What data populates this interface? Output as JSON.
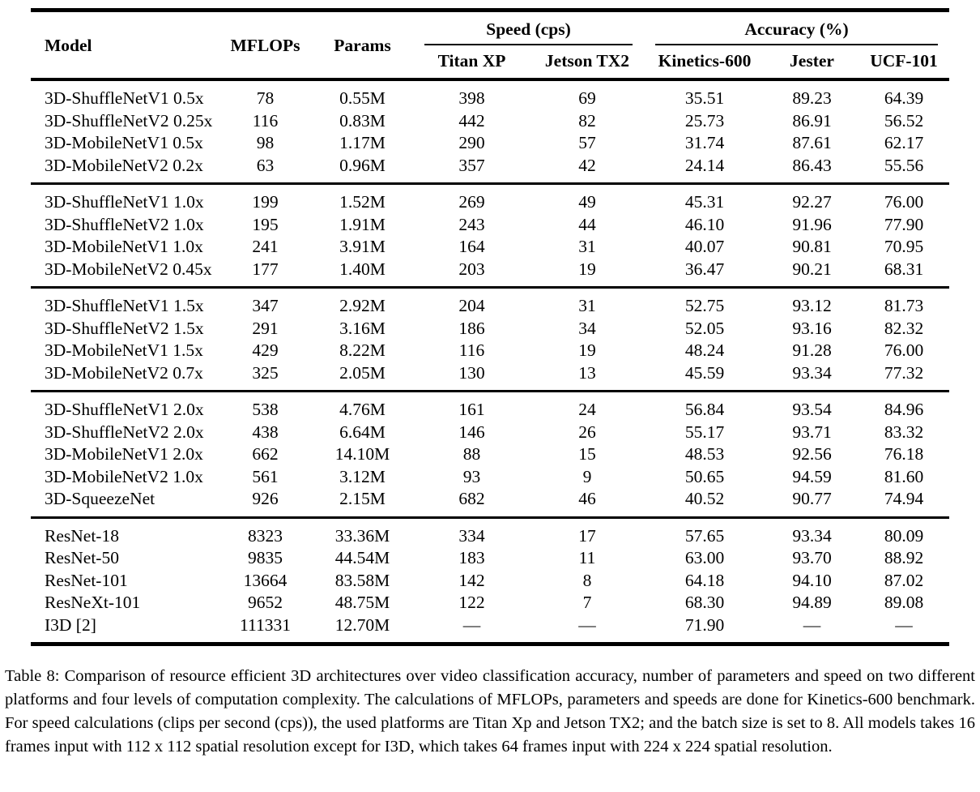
{
  "table": {
    "headers": {
      "model": "Model",
      "mflops": "MFLOPs",
      "params": "Params",
      "speed_group": "Speed (cps)",
      "accuracy_group": "Accuracy (%)",
      "speed_cols": [
        "Titan XP",
        "Jetson TX2"
      ],
      "accuracy_cols": [
        "Kinetics-600",
        "Jester",
        "UCF-101"
      ]
    },
    "groups": [
      {
        "rows": [
          [
            "3D-ShuffleNetV1 0.5x",
            "78",
            "0.55M",
            "398",
            "69",
            "35.51",
            "89.23",
            "64.39"
          ],
          [
            "3D-ShuffleNetV2 0.25x",
            "116",
            "0.83M",
            "442",
            "82",
            "25.73",
            "86.91",
            "56.52"
          ],
          [
            "3D-MobileNetV1 0.5x",
            "98",
            "1.17M",
            "290",
            "57",
            "31.74",
            "87.61",
            "62.17"
          ],
          [
            "3D-MobileNetV2 0.2x",
            "63",
            "0.96M",
            "357",
            "42",
            "24.14",
            "86.43",
            "55.56"
          ]
        ]
      },
      {
        "rows": [
          [
            "3D-ShuffleNetV1 1.0x",
            "199",
            "1.52M",
            "269",
            "49",
            "45.31",
            "92.27",
            "76.00"
          ],
          [
            "3D-ShuffleNetV2 1.0x",
            "195",
            "1.91M",
            "243",
            "44",
            "46.10",
            "91.96",
            "77.90"
          ],
          [
            "3D-MobileNetV1 1.0x",
            "241",
            "3.91M",
            "164",
            "31",
            "40.07",
            "90.81",
            "70.95"
          ],
          [
            "3D-MobileNetV2 0.45x",
            "177",
            "1.40M",
            "203",
            "19",
            "36.47",
            "90.21",
            "68.31"
          ]
        ]
      },
      {
        "rows": [
          [
            "3D-ShuffleNetV1 1.5x",
            "347",
            "2.92M",
            "204",
            "31",
            "52.75",
            "93.12",
            "81.73"
          ],
          [
            "3D-ShuffleNetV2 1.5x",
            "291",
            "3.16M",
            "186",
            "34",
            "52.05",
            "93.16",
            "82.32"
          ],
          [
            "3D-MobileNetV1 1.5x",
            "429",
            "8.22M",
            "116",
            "19",
            "48.24",
            "91.28",
            "76.00"
          ],
          [
            "3D-MobileNetV2 0.7x",
            "325",
            "2.05M",
            "130",
            "13",
            "45.59",
            "93.34",
            "77.32"
          ]
        ]
      },
      {
        "rows": [
          [
            "3D-ShuffleNetV1 2.0x",
            "538",
            "4.76M",
            "161",
            "24",
            "56.84",
            "93.54",
            "84.96"
          ],
          [
            "3D-ShuffleNetV2 2.0x",
            "438",
            "6.64M",
            "146",
            "26",
            "55.17",
            "93.71",
            "83.32"
          ],
          [
            "3D-MobileNetV1 2.0x",
            "662",
            "14.10M",
            "88",
            "15",
            "48.53",
            "92.56",
            "76.18"
          ],
          [
            "3D-MobileNetV2 1.0x",
            "561",
            "3.12M",
            "93",
            "9",
            "50.65",
            "94.59",
            "81.60"
          ],
          [
            "3D-SqueezeNet",
            "926",
            "2.15M",
            "682",
            "46",
            "40.52",
            "90.77",
            "74.94"
          ]
        ]
      },
      {
        "rows": [
          [
            "ResNet-18",
            "8323",
            "33.36M",
            "334",
            "17",
            "57.65",
            "93.34",
            "80.09"
          ],
          [
            "ResNet-50",
            "9835",
            "44.54M",
            "183",
            "11",
            "63.00",
            "93.70",
            "88.92"
          ],
          [
            "ResNet-101",
            "13664",
            "83.58M",
            "142",
            "8",
            "64.18",
            "94.10",
            "87.02"
          ],
          [
            "ResNeXt-101",
            "9652",
            "48.75M",
            "122",
            "7",
            "68.30",
            "94.89",
            "89.08"
          ],
          [
            "I3D [2]",
            "111331",
            "12.70M",
            "—",
            "—",
            "71.90",
            "—",
            "—"
          ]
        ]
      }
    ],
    "caption": "Table 8: Comparison of resource efficient 3D architectures over video classification accuracy, number of parameters and speed on two different platforms and four levels of computation complexity. The calculations of MFLOPs, parameters and speeds are done for Kinetics-600 benchmark. For speed calculations (clips per second (cps)), the used platforms are Titan Xp and Jetson TX2; and the batch size is set to 8. All models takes 16 frames input with 112 x 112 spatial resolution except for I3D, which takes 64 frames input with 224 x 224 spatial resolution."
  }
}
